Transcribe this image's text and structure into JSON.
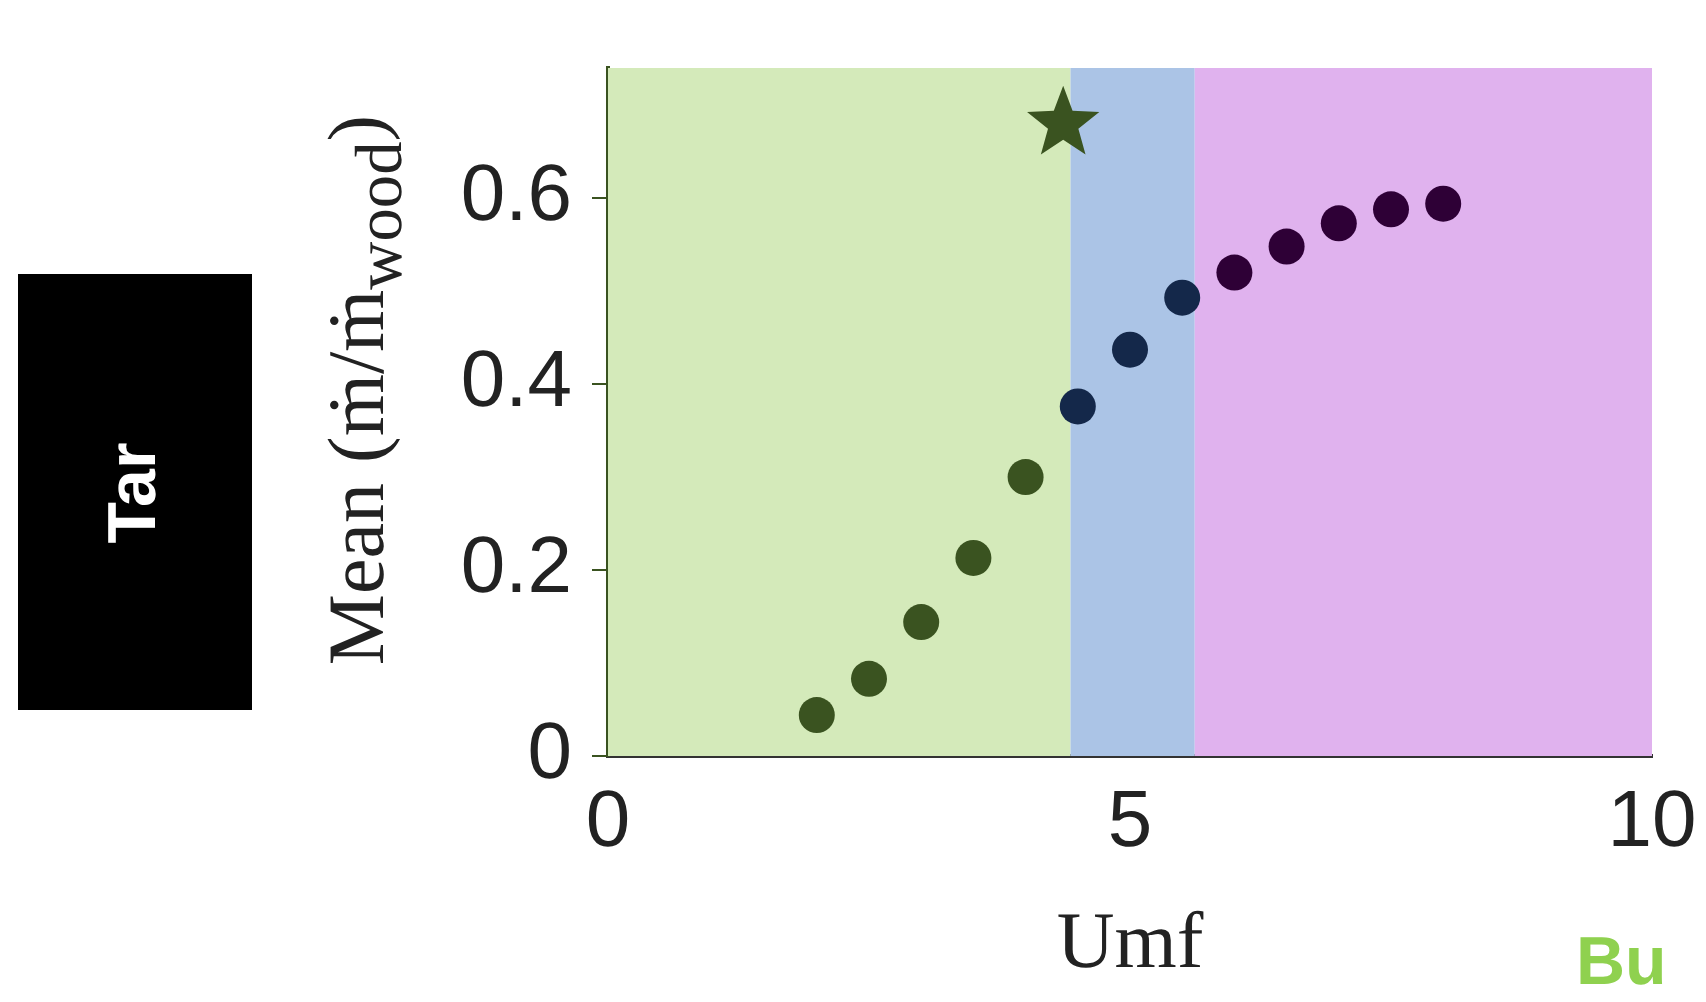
{
  "chart_data": {
    "type": "scatter",
    "xlabel": "Umf",
    "ylabel": "Mean (ṁ/ṁ$_{wood}$)",
    "xlim": [
      0,
      10
    ],
    "ylim": [
      0,
      0.74
    ],
    "xticks": [
      0,
      5,
      10
    ],
    "yticks": [
      0,
      0.2,
      0.4,
      0.6
    ],
    "grid": false,
    "legend": false,
    "marker": "circle",
    "annotations": [
      "Tar",
      "Bu"
    ],
    "bands": [
      {
        "axis": "x",
        "from": 0,
        "to": 4.43,
        "color": "#d4eaba"
      },
      {
        "axis": "x",
        "from": 4.43,
        "to": 5.62,
        "color": "#abc4e6"
      },
      {
        "axis": "x",
        "from": 5.62,
        "to": 10,
        "color": "#e0b2ee"
      }
    ],
    "series": [
      {
        "color": "#3a5320",
        "x": [
          2,
          2.5,
          3,
          3.5,
          4
        ],
        "values": [
          0.044,
          0.083,
          0.144,
          0.213,
          0.3
        ]
      },
      {
        "color": "#14284a",
        "x": [
          4.5,
          5,
          5.5
        ],
        "values": [
          0.376,
          0.437,
          0.493
        ]
      },
      {
        "color": "#2e0036",
        "x": [
          6,
          6.5,
          7,
          7.5,
          8
        ],
        "values": [
          0.52,
          0.548,
          0.573,
          0.588,
          0.594
        ]
      },
      {
        "color": "#3a5320",
        "marker": "star",
        "x": [
          4.36
        ],
        "values": [
          0.68
        ]
      }
    ]
  }
}
